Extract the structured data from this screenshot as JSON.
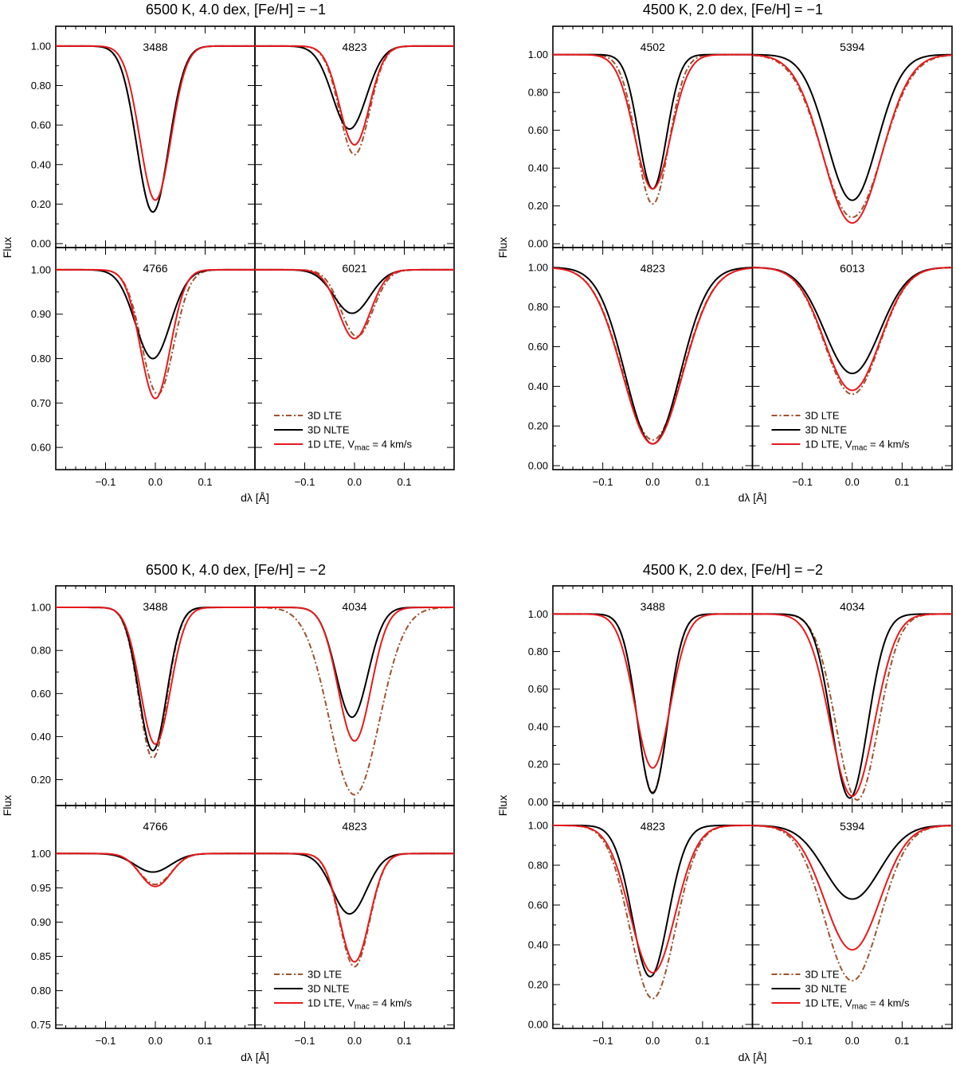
{
  "colors": {
    "lte3d": "#a0522d",
    "nlte3d": "#000000",
    "lte1d": "#e8191c"
  },
  "legend_labels": {
    "lte3d": "3D LTE",
    "nlte3d": "3D NLTE",
    "lte1d_prefix": "1D LTE, V",
    "lte1d_sub": "mac",
    "lte1d_suffix": " = 4 km/s"
  },
  "chart_data": [
    {
      "type": "line",
      "title": "6500 K, 4.0 dex, [Fe/H] = −1",
      "xlabel": "dλ [Å]",
      "ylabel": "Flux",
      "xlim": [
        -0.2,
        0.2
      ],
      "xticks": [
        -0.1,
        0.0,
        0.1
      ],
      "xtick_labels": [
        "−0.1",
        "0.0",
        "0.1"
      ],
      "panels": [
        {
          "label": "3488",
          "ylim": [
            -0.02,
            1.1
          ],
          "yticks": [
            0,
            0.2,
            0.4,
            0.6,
            0.8,
            1.0
          ],
          "ytick_labels": [
            "0.00",
            "0.20",
            "0.40",
            "0.60",
            "0.80",
            "1.00"
          ],
          "series": [
            {
              "name": "3D LTE",
              "depth": 0.84,
              "center": -0.005,
              "width": 0.032
            },
            {
              "name": "3D NLTE",
              "depth": 0.84,
              "center": -0.005,
              "width": 0.032
            },
            {
              "name": "1D LTE",
              "depth": 0.78,
              "center": 0.0,
              "width": 0.031
            }
          ]
        },
        {
          "label": "4823",
          "ylim": [
            -0.02,
            1.1
          ],
          "yticks": [
            0,
            0.2,
            0.4,
            0.6,
            0.8,
            1.0
          ],
          "ytick_labels": [
            "0.00",
            "0.20",
            "0.40",
            "0.60",
            "0.80",
            "1.00"
          ],
          "series": [
            {
              "name": "3D LTE",
              "depth": 0.55,
              "center": 0.0,
              "width": 0.03
            },
            {
              "name": "3D NLTE",
              "depth": 0.42,
              "center": -0.01,
              "width": 0.034
            },
            {
              "name": "1D LTE",
              "depth": 0.5,
              "center": 0.0,
              "width": 0.03
            }
          ]
        },
        {
          "label": "4766",
          "ylim": [
            0.55,
            1.05
          ],
          "yticks": [
            0.6,
            0.7,
            0.8,
            0.9,
            1.0
          ],
          "ytick_labels": [
            "0.60",
            "0.70",
            "0.80",
            "0.90",
            "1.00"
          ],
          "series": [
            {
              "name": "3D LTE",
              "depth": 0.28,
              "center": 0.005,
              "width": 0.032
            },
            {
              "name": "3D NLTE",
              "depth": 0.2,
              "center": -0.005,
              "width": 0.035
            },
            {
              "name": "1D LTE",
              "depth": 0.29,
              "center": 0.0,
              "width": 0.03
            }
          ]
        },
        {
          "label": "6021",
          "ylim": [
            0.55,
            1.05
          ],
          "yticks": [
            0.6,
            0.7,
            0.8,
            0.9,
            1.0
          ],
          "ytick_labels": [
            "0.60",
            "0.70",
            "0.80",
            "0.90",
            "1.00"
          ],
          "legend": true,
          "series": [
            {
              "name": "3D LTE",
              "depth": 0.15,
              "center": 0.005,
              "width": 0.032
            },
            {
              "name": "3D NLTE",
              "depth": 0.098,
              "center": -0.005,
              "width": 0.036
            },
            {
              "name": "1D LTE",
              "depth": 0.155,
              "center": 0.0,
              "width": 0.032
            }
          ]
        }
      ]
    },
    {
      "type": "line",
      "title": "4500 K, 2.0 dex, [Fe/H] = −1",
      "xlabel": "dλ [Å]",
      "ylabel": "Flux",
      "xlim": [
        -0.2,
        0.2
      ],
      "xticks": [
        -0.1,
        0.0,
        0.1
      ],
      "xtick_labels": [
        "−0.1",
        "0.0",
        "0.1"
      ],
      "panels": [
        {
          "label": "4502",
          "ylim": [
            -0.02,
            1.15
          ],
          "yticks": [
            0,
            0.2,
            0.4,
            0.6,
            0.8,
            1.0
          ],
          "ytick_labels": [
            "0.00",
            "0.20",
            "0.40",
            "0.60",
            "0.80",
            "1.00"
          ],
          "series": [
            {
              "name": "3D LTE",
              "depth": 0.79,
              "center": 0.0,
              "width": 0.032
            },
            {
              "name": "3D NLTE",
              "depth": 0.71,
              "center": 0.0,
              "width": 0.028
            },
            {
              "name": "1D LTE",
              "depth": 0.71,
              "center": 0.0,
              "width": 0.036
            }
          ]
        },
        {
          "label": "5394",
          "ylim": [
            -0.02,
            1.15
          ],
          "yticks": [
            0,
            0.2,
            0.4,
            0.6,
            0.8,
            1.0
          ],
          "ytick_labels": [
            "0.00",
            "0.20",
            "0.40",
            "0.60",
            "0.80",
            "1.00"
          ],
          "series": [
            {
              "name": "3D LTE",
              "depth": 0.86,
              "center": 0.0,
              "width": 0.06
            },
            {
              "name": "3D NLTE",
              "depth": 0.77,
              "center": 0.0,
              "width": 0.05
            },
            {
              "name": "1D LTE",
              "depth": 0.89,
              "center": 0.0,
              "width": 0.058
            }
          ]
        },
        {
          "label": "4823",
          "ylim": [
            -0.02,
            1.1
          ],
          "yticks": [
            0,
            0.2,
            0.4,
            0.6,
            0.8,
            1.0
          ],
          "ytick_labels": [
            "0.00",
            "0.20",
            "0.40",
            "0.60",
            "0.80",
            "1.00"
          ],
          "series": [
            {
              "name": "3D LTE",
              "depth": 0.87,
              "center": 0.0,
              "width": 0.06
            },
            {
              "name": "3D NLTE",
              "depth": 0.89,
              "center": 0.0,
              "width": 0.055
            },
            {
              "name": "1D LTE",
              "depth": 0.89,
              "center": 0.0,
              "width": 0.06
            }
          ]
        },
        {
          "label": "6013",
          "ylim": [
            -0.02,
            1.1
          ],
          "yticks": [
            0,
            0.2,
            0.4,
            0.6,
            0.8,
            1.0
          ],
          "ytick_labels": [
            "0.00",
            "0.20",
            "0.40",
            "0.60",
            "0.80",
            "1.00"
          ],
          "legend": true,
          "series": [
            {
              "name": "3D LTE",
              "depth": 0.64,
              "center": 0.0,
              "width": 0.055
            },
            {
              "name": "3D NLTE",
              "depth": 0.535,
              "center": 0.0,
              "width": 0.055
            },
            {
              "name": "1D LTE",
              "depth": 0.62,
              "center": 0.0,
              "width": 0.055
            }
          ]
        }
      ]
    },
    {
      "type": "line",
      "title": "6500 K, 4.0 dex, [Fe/H] = −2",
      "xlabel": "dλ [Å]",
      "ylabel": "Flux",
      "xlim": [
        -0.2,
        0.2
      ],
      "xticks": [
        -0.1,
        0.0,
        0.1
      ],
      "xtick_labels": [
        "−0.1",
        "0.0",
        "0.1"
      ],
      "panels": [
        {
          "label": "3488",
          "ylim": [
            0.08,
            1.1
          ],
          "yticks": [
            0.2,
            0.4,
            0.6,
            0.8,
            1.0
          ],
          "ytick_labels": [
            "0.20",
            "0.40",
            "0.60",
            "0.80",
            "1.00"
          ],
          "series": [
            {
              "name": "3D LTE",
              "depth": 0.7,
              "center": -0.005,
              "width": 0.028
            },
            {
              "name": "3D NLTE",
              "depth": 0.665,
              "center": -0.005,
              "width": 0.028
            },
            {
              "name": "1D LTE",
              "depth": 0.635,
              "center": 0.0,
              "width": 0.03
            }
          ]
        },
        {
          "label": "4034",
          "ylim": [
            0.08,
            1.1
          ],
          "yticks": [
            0.2,
            0.4,
            0.6,
            0.8,
            1.0
          ],
          "ytick_labels": [
            "0.20",
            "0.40",
            "0.60",
            "0.80",
            "1.00"
          ],
          "series": [
            {
              "name": "3D LTE",
              "depth": 0.87,
              "center": 0.0,
              "width": 0.05
            },
            {
              "name": "3D NLTE",
              "depth": 0.51,
              "center": -0.005,
              "width": 0.032
            },
            {
              "name": "1D LTE",
              "depth": 0.62,
              "center": 0.0,
              "width": 0.033
            }
          ]
        },
        {
          "label": "4766",
          "ylim": [
            0.745,
            1.07
          ],
          "yticks": [
            0.75,
            0.8,
            0.85,
            0.9,
            0.95,
            1.0
          ],
          "ytick_labels": [
            "0.75",
            "0.80",
            "0.85",
            "0.90",
            "0.95",
            "1.00"
          ],
          "series": [
            {
              "name": "3D LTE",
              "depth": 0.045,
              "center": 0.0,
              "width": 0.032
            },
            {
              "name": "3D NLTE",
              "depth": 0.027,
              "center": -0.005,
              "width": 0.036
            },
            {
              "name": "1D LTE",
              "depth": 0.048,
              "center": 0.0,
              "width": 0.031
            }
          ]
        },
        {
          "label": "4823",
          "ylim": [
            0.745,
            1.07
          ],
          "yticks": [
            0.75,
            0.8,
            0.85,
            0.9,
            0.95,
            1.0
          ],
          "ytick_labels": [
            "0.75",
            "0.80",
            "0.85",
            "0.90",
            "0.95",
            "1.00"
          ],
          "legend": true,
          "series": [
            {
              "name": "3D LTE",
              "depth": 0.165,
              "center": 0.0,
              "width": 0.03
            },
            {
              "name": "3D NLTE",
              "depth": 0.088,
              "center": -0.01,
              "width": 0.034
            },
            {
              "name": "1D LTE",
              "depth": 0.158,
              "center": 0.0,
              "width": 0.03
            }
          ]
        }
      ]
    },
    {
      "type": "line",
      "title": "4500 K, 2.0 dex, [Fe/H] = −2",
      "xlabel": "dλ [Å]",
      "ylabel": "Flux",
      "xlim": [
        -0.2,
        0.2
      ],
      "xticks": [
        -0.1,
        0.0,
        0.1
      ],
      "xtick_labels": [
        "−0.1",
        "0.0",
        "0.1"
      ],
      "panels": [
        {
          "label": "3488",
          "ylim": [
            -0.02,
            1.15
          ],
          "yticks": [
            0,
            0.2,
            0.4,
            0.6,
            0.8,
            1.0
          ],
          "ytick_labels": [
            "0.00",
            "0.20",
            "0.40",
            "0.60",
            "0.80",
            "1.00"
          ],
          "series": [
            {
              "name": "3D LTE",
              "depth": 0.95,
              "center": 0.0,
              "width": 0.03
            },
            {
              "name": "3D NLTE",
              "depth": 0.955,
              "center": 0.0,
              "width": 0.03
            },
            {
              "name": "1D LTE",
              "depth": 0.82,
              "center": 0.0,
              "width": 0.035
            }
          ]
        },
        {
          "label": "4034",
          "ylim": [
            -0.02,
            1.15
          ],
          "yticks": [
            0,
            0.2,
            0.4,
            0.6,
            0.8,
            1.0
          ],
          "ytick_labels": [
            "0.00",
            "0.20",
            "0.40",
            "0.60",
            "0.80",
            "1.00"
          ],
          "series": [
            {
              "name": "3D LTE",
              "depth": 0.99,
              "center": 0.01,
              "width": 0.042
            },
            {
              "name": "3D NLTE",
              "depth": 0.98,
              "center": -0.005,
              "width": 0.036
            },
            {
              "name": "1D LTE",
              "depth": 0.97,
              "center": 0.0,
              "width": 0.044
            }
          ]
        },
        {
          "label": "4823",
          "ylim": [
            -0.02,
            1.1
          ],
          "yticks": [
            0,
            0.2,
            0.4,
            0.6,
            0.8,
            1.0
          ],
          "ytick_labels": [
            "0.00",
            "0.20",
            "0.40",
            "0.60",
            "0.80",
            "1.00"
          ],
          "series": [
            {
              "name": "3D LTE",
              "depth": 0.87,
              "center": 0.0,
              "width": 0.045
            },
            {
              "name": "3D NLTE",
              "depth": 0.76,
              "center": -0.005,
              "width": 0.036
            },
            {
              "name": "1D LTE",
              "depth": 0.74,
              "center": 0.0,
              "width": 0.045
            }
          ]
        },
        {
          "label": "5394",
          "ylim": [
            -0.02,
            1.1
          ],
          "yticks": [
            0,
            0.2,
            0.4,
            0.6,
            0.8,
            1.0
          ],
          "ytick_labels": [
            "0.00",
            "0.20",
            "0.40",
            "0.60",
            "0.80",
            "1.00"
          ],
          "legend": true,
          "series": [
            {
              "name": "3D LTE",
              "depth": 0.78,
              "center": 0.0,
              "width": 0.055
            },
            {
              "name": "3D NLTE",
              "depth": 0.37,
              "center": 0.0,
              "width": 0.055
            },
            {
              "name": "1D LTE",
              "depth": 0.625,
              "center": 0.0,
              "width": 0.055
            }
          ]
        }
      ]
    }
  ]
}
